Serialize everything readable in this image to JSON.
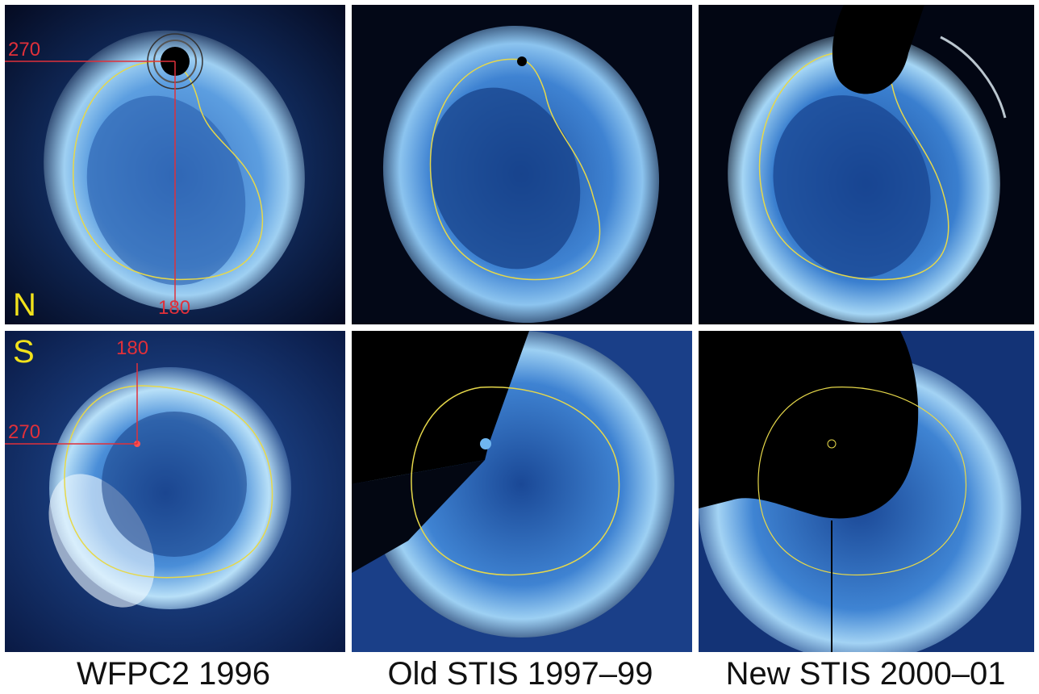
{
  "colors": {
    "background": "#02050f",
    "aurora_bright": "#e8f6ff",
    "aurora_mid": "#4f8fd6",
    "aurora_dim": "#143a7a",
    "oval_line": "#e6d84a",
    "marker_text": "#e0303a",
    "hemisphere_label": "#f2e21b",
    "caption_text": "#111111"
  },
  "hemispheres": {
    "north": "N",
    "south": "S"
  },
  "markers": {
    "north": {
      "lon_a": "270",
      "lon_b": "180"
    },
    "south": {
      "lon_a": "180",
      "lon_b": "270"
    }
  },
  "captions": [
    "WFPC2 1996",
    "Old STIS 1997–99",
    "New STIS 2000–01"
  ]
}
